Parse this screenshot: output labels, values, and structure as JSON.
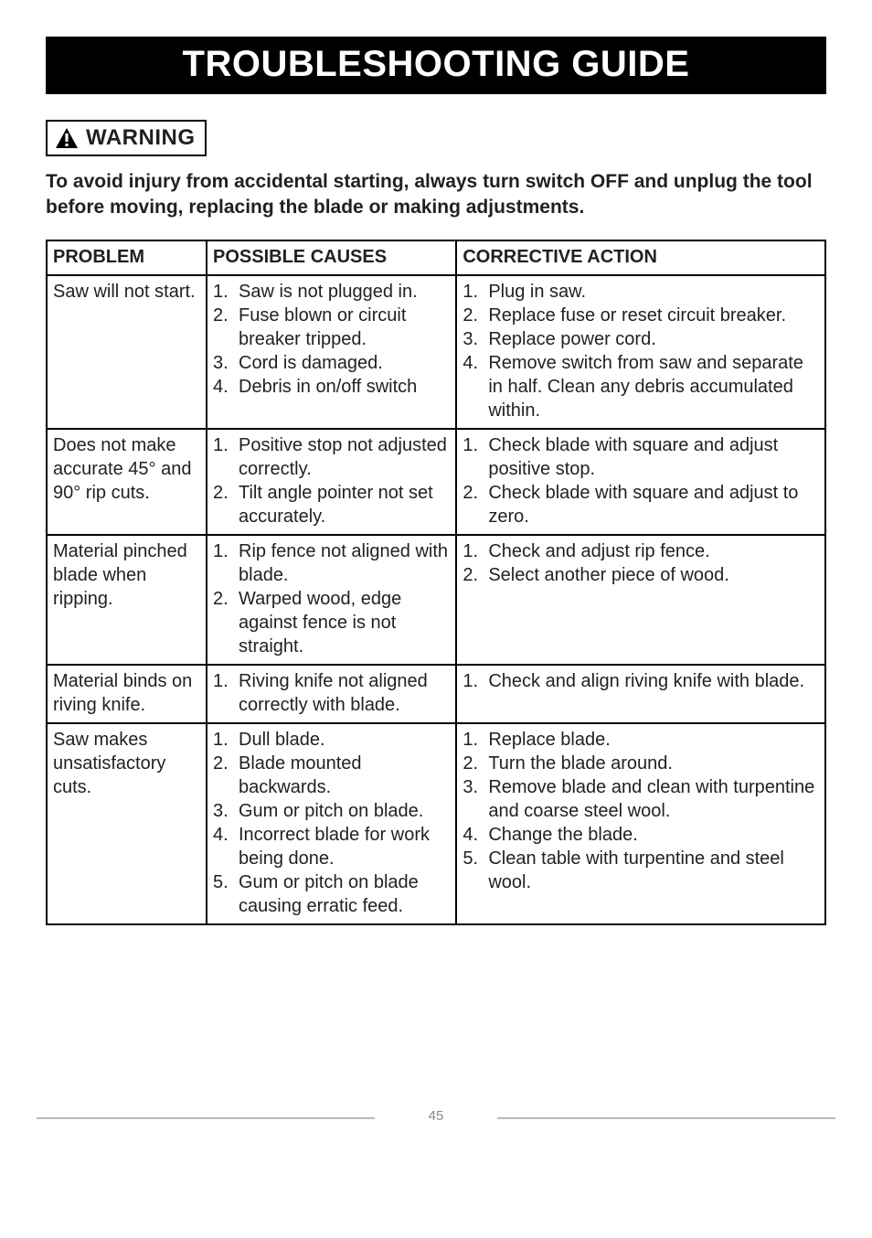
{
  "title": "TROUBLESHOOTING GUIDE",
  "warning_label": "WARNING",
  "intro": "To avoid injury from accidental starting, always turn switch OFF and unplug the tool before moving, replacing the blade or making adjustments.",
  "headers": {
    "c1": "PROBLEM",
    "c2": "POSSIBLE CAUSES",
    "c3": "CORRECTIVE ACTION"
  },
  "rows": [
    {
      "problem": "Saw will not start.",
      "causes": [
        "Saw is not plugged in.",
        "Fuse blown or circuit breaker tripped.",
        "Cord is damaged.",
        "Debris in on/off switch"
      ],
      "actions": [
        "Plug in saw.",
        "Replace fuse or reset circuit breaker.",
        "Replace power cord.",
        "Remove switch from saw and separate in half. Clean any debris accumulated within."
      ]
    },
    {
      "problem": "Does not make accurate 45° and 90° rip cuts.",
      "causes": [
        "Positive stop not adjusted correctly.",
        "Tilt angle pointer not set accurately."
      ],
      "actions": [
        "Check blade with square and adjust positive stop.",
        "Check blade with square and adjust to zero."
      ]
    },
    {
      "problem": "Material pinched blade when ripping.",
      "causes": [
        "Rip fence not aligned with blade.",
        "Warped wood, edge against fence is not straight."
      ],
      "actions": [
        "Check and adjust rip fence.",
        "Select another piece of wood."
      ]
    },
    {
      "problem": "Material binds on riving knife.",
      "causes": [
        "Riving knife not aligned correctly with blade."
      ],
      "actions": [
        "Check and align riving knife with blade."
      ]
    },
    {
      "problem": "Saw makes unsatisfactory cuts.",
      "causes": [
        "Dull blade.",
        "Blade mounted backwards.",
        "Gum or pitch on blade.",
        "Incorrect blade for work being done.",
        "Gum or pitch on blade causing erratic feed."
      ],
      "actions": [
        "Replace blade.",
        "Turn the blade around.",
        "Remove blade and clean with turpentine and coarse steel wool.",
        "Change the blade.",
        "Clean table with turpentine and steel wool."
      ]
    }
  ],
  "page_number": "45"
}
